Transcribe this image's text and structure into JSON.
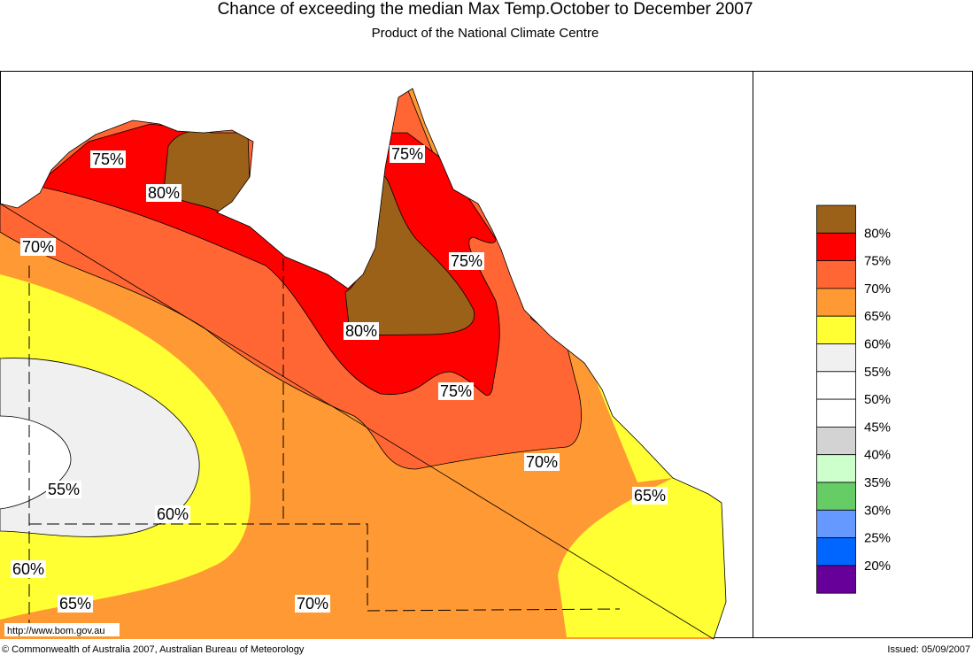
{
  "title": "Chance of exceeding the median Max Temp.October to December 2007",
  "subtitle": "Product of the National Climate Centre",
  "contour_labels": [
    "75%",
    "80%",
    "70%",
    "75%",
    "75%",
    "80%",
    "75%",
    "70%",
    "65%",
    "55%",
    "60%",
    "60%",
    "65%",
    "70%"
  ],
  "legend": {
    "colors": [
      "#9b6118",
      "#ff0000",
      "#ff6633",
      "#ff9933",
      "#ffff33",
      "#f0f0f0",
      "#ffffff",
      "#ffffff",
      "#d3d3d3",
      "#ccffcc",
      "#66cc66",
      "#6699ff",
      "#0066ff",
      "#660099"
    ],
    "labels": [
      "80%",
      "75%",
      "70%",
      "65%",
      "60%",
      "55%",
      "50%",
      "45%",
      "40%",
      "35%",
      "30%",
      "25%",
      "20%"
    ]
  },
  "url": "http://www.bom.gov.au",
  "copyright": "© Commonwealth of Australia 2007, Australian Bureau of Meteorology",
  "issued": "Issued: 05/09/2007"
}
